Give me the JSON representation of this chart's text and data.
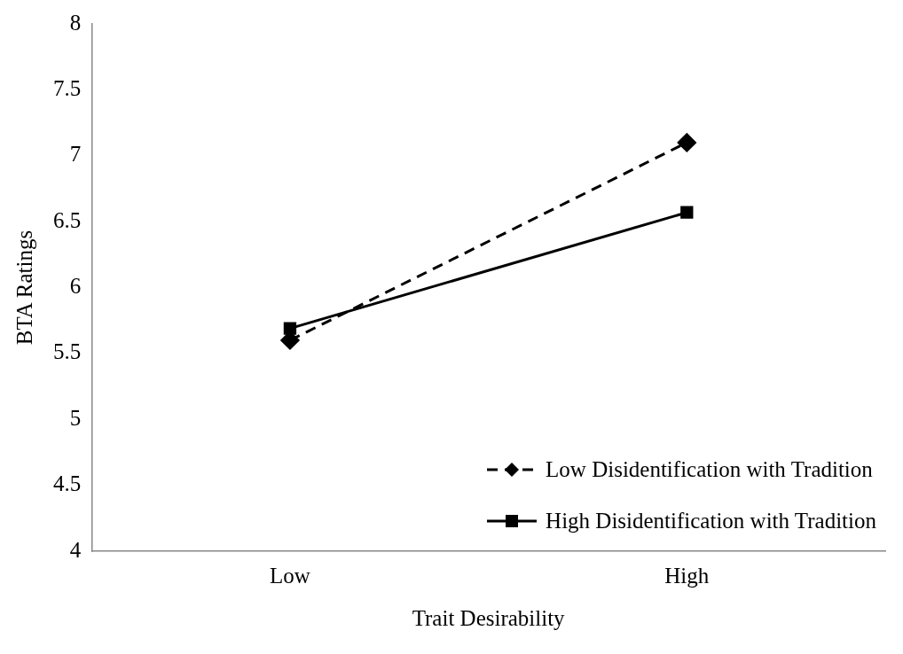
{
  "chart_data": {
    "type": "line",
    "xlabel": "Trait Desirability",
    "ylabel": "BTA Ratings",
    "categories": [
      "Low",
      "High"
    ],
    "series": [
      {
        "name": "Low Disidentification with Tradition",
        "color": "#000000",
        "values": [
          5.6,
          7.1
        ],
        "marker": "diamond",
        "line_style": "dashed"
      },
      {
        "name": "High Disidentification with Tradition",
        "color": "#000000",
        "values": [
          5.69,
          6.57
        ],
        "marker": "square",
        "line_style": "solid"
      }
    ],
    "ylim": [
      4,
      8
    ],
    "yticks": [
      4,
      4.5,
      5,
      5.5,
      6,
      6.5,
      7,
      7.5,
      8
    ],
    "grid": false,
    "legend": "bottom right"
  }
}
